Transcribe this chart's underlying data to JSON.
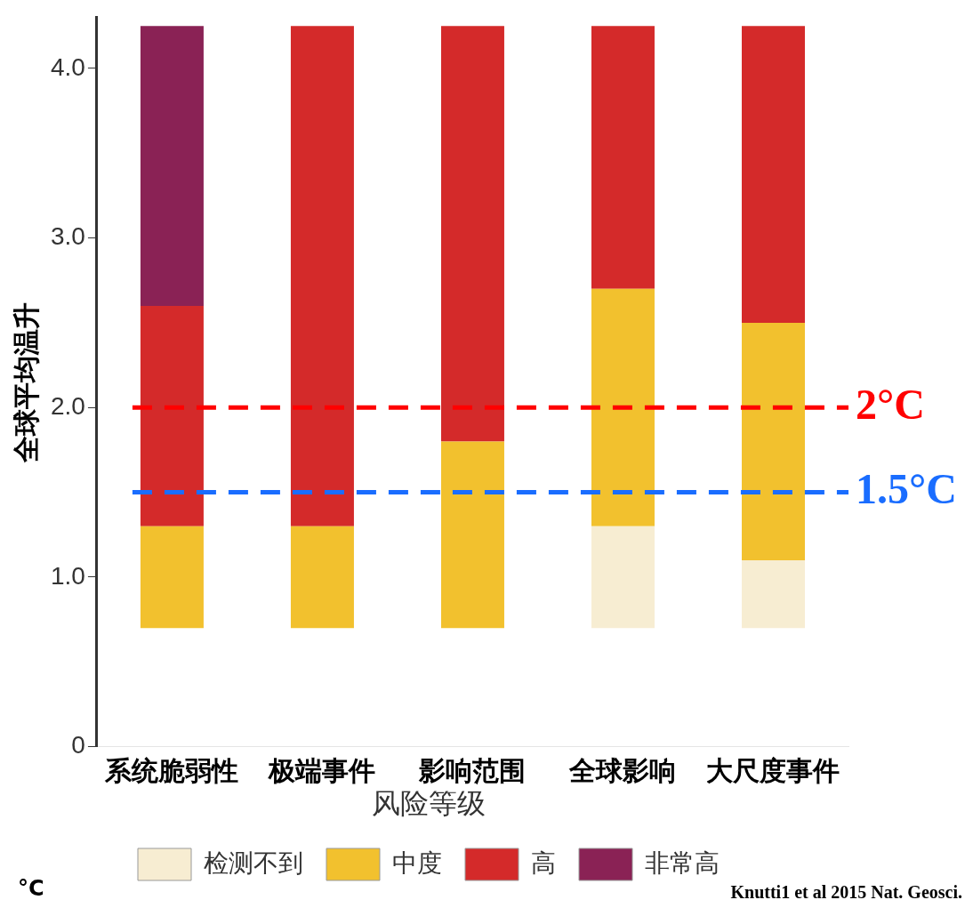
{
  "chart_data": {
    "type": "bar",
    "ylabel": "全球平均温升",
    "legend_title": "风险等级",
    "legend": "bottom",
    "categories": [
      "系统脆弱性",
      "极端事件",
      "影响范围",
      "全球影响",
      "大尺度事件"
    ],
    "series": [
      {
        "name": "检测不到",
        "color": "#f7edd2",
        "base": [
          null,
          null,
          null,
          0.7,
          0.7
        ],
        "values": [
          null,
          null,
          null,
          0.6,
          0.4
        ]
      },
      {
        "name": "中度",
        "color": "#f2c12e",
        "base": [
          0.7,
          0.7,
          0.7,
          1.3,
          1.1
        ],
        "values": [
          0.6,
          0.6,
          1.1,
          1.4,
          1.4
        ]
      },
      {
        "name": "高",
        "color": "#d42a2a",
        "base": [
          1.3,
          1.3,
          1.8,
          2.7,
          2.5
        ],
        "values": [
          1.3,
          2.95,
          2.45,
          1.55,
          1.75
        ]
      },
      {
        "name": "非常高",
        "color": "#8a2255",
        "base": [
          2.6,
          null,
          null,
          null,
          null
        ],
        "values": [
          1.65,
          null,
          null,
          null,
          null
        ]
      }
    ],
    "ylim": [
      0,
      4.3
    ],
    "yticks": [
      0,
      {
        "value": 1,
        "label": "1.0"
      },
      {
        "value": 2,
        "label": "2.0"
      },
      {
        "value": 3,
        "label": "3.0"
      },
      {
        "value": 4,
        "label": "4.0"
      }
    ],
    "grid": false,
    "ref_lines": [
      {
        "axis": "y",
        "value": 2,
        "label": "2°C",
        "color": "#ff0000",
        "line_style": "dashed"
      },
      {
        "axis": "y",
        "value": 1.5,
        "label": "1.5°C",
        "color": "#1a6dff",
        "line_style": "dashed"
      }
    ],
    "annotations": [
      "°C",
      "Knutti1 et al 2015 Nat. Geosci."
    ]
  }
}
